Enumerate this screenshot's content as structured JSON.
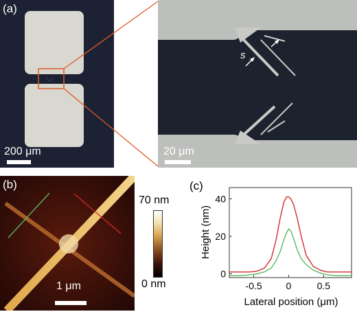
{
  "panel_a": {
    "label": "(a)",
    "scale_left": "200 μm",
    "scale_right": "20 μm",
    "gap_label": "s"
  },
  "panel_b": {
    "label": "(b)",
    "colorbar_max": "70 nm",
    "colorbar_min": "0 nm",
    "scale": "1 μm"
  },
  "panel_c": {
    "label": "(c)",
    "ylabel": "Height (nm)",
    "xlabel": "Lateral position (μm)",
    "ytick_labels": [
      "0",
      "20",
      "40"
    ],
    "xtick_labels": [
      "-0.5",
      "0",
      "0.5"
    ]
  },
  "colors": {
    "red_trace": "#d42a2a",
    "green_trace": "#5cb85c",
    "substrate": "#1c2233",
    "pad": "#d7d7d0"
  },
  "chart_data": {
    "type": "line",
    "xlabel": "Lateral position (μm)",
    "ylabel": "Height (nm)",
    "xlim": [
      -0.85,
      0.9
    ],
    "ylim": [
      -2,
      46
    ],
    "xticks": [
      -0.5,
      0,
      0.5
    ],
    "yticks": [
      0,
      20,
      40
    ],
    "series": [
      {
        "color": "red",
        "x": [
          -0.85,
          -0.7,
          -0.55,
          -0.45,
          -0.35,
          -0.25,
          -0.18,
          -0.12,
          -0.07,
          -0.03,
          0,
          0.03,
          0.07,
          0.12,
          0.18,
          0.25,
          0.35,
          0.45,
          0.55,
          0.7,
          0.9
        ],
        "y": [
          1,
          1,
          1,
          1.5,
          3,
          8,
          18,
          30,
          38,
          41,
          41,
          40,
          37,
          30,
          20,
          10,
          4,
          2,
          1,
          1,
          1
        ]
      },
      {
        "color": "green",
        "x": [
          -0.85,
          -0.7,
          -0.55,
          -0.45,
          -0.35,
          -0.25,
          -0.18,
          -0.12,
          -0.07,
          -0.03,
          0,
          0.03,
          0.07,
          0.12,
          0.18,
          0.25,
          0.35,
          0.45,
          0.55,
          0.7,
          0.9
        ],
        "y": [
          -1,
          -1,
          -0.5,
          0,
          1,
          3,
          7,
          12,
          18,
          22,
          24,
          23,
          19,
          13,
          8,
          5,
          2,
          0.5,
          -0.5,
          -1,
          -1
        ]
      }
    ]
  }
}
